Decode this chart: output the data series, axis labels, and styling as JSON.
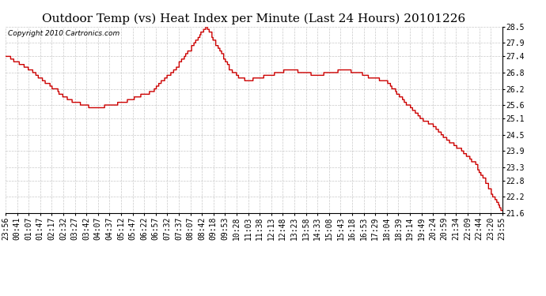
{
  "title": "Outdoor Temp (vs) Heat Index per Minute (Last 24 Hours) 20101226",
  "copyright_text": "Copyright 2010 Cartronics.com",
  "line_color": "#cc0000",
  "background_color": "#ffffff",
  "plot_bg_color": "#ffffff",
  "grid_color": "#bbbbbb",
  "yticks": [
    21.6,
    22.2,
    22.8,
    23.3,
    23.9,
    24.5,
    25.1,
    25.6,
    26.2,
    26.8,
    27.4,
    27.9,
    28.5
  ],
  "ylim": [
    21.6,
    28.5
  ],
  "xtick_labels": [
    "23:56",
    "00:41",
    "01:07",
    "01:47",
    "02:17",
    "02:32",
    "03:27",
    "03:42",
    "04:07",
    "04:37",
    "05:12",
    "05:47",
    "06:22",
    "06:57",
    "07:32",
    "07:37",
    "08:07",
    "08:42",
    "09:18",
    "09:53",
    "10:28",
    "11:03",
    "11:38",
    "12:13",
    "12:48",
    "13:23",
    "13:58",
    "14:33",
    "15:08",
    "15:43",
    "16:18",
    "16:53",
    "17:29",
    "18:04",
    "18:39",
    "19:14",
    "19:49",
    "20:24",
    "20:59",
    "21:34",
    "22:09",
    "22:44",
    "23:20",
    "23:55"
  ],
  "title_fontsize": 11,
  "tick_fontsize": 7,
  "copyright_fontsize": 6.5,
  "line_width": 1.0
}
